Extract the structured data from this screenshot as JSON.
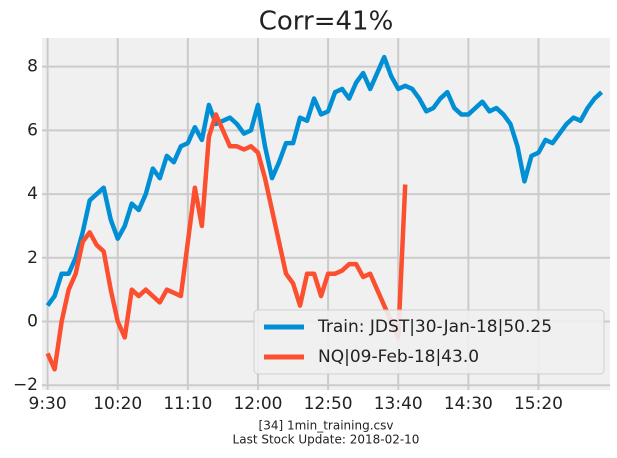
{
  "chart_data": {
    "type": "line",
    "title": "Corr=41%",
    "xlabel": [
      "[34] 1min_training.csv",
      "Last Stock Update: 2018-02-10"
    ],
    "x": [
      570,
      575,
      580,
      585,
      590,
      595,
      600,
      605,
      610,
      615,
      620,
      625,
      630,
      635,
      640,
      645,
      650,
      655,
      660,
      665,
      670,
      675,
      680,
      685,
      690,
      695,
      700,
      705,
      710,
      715,
      720,
      725,
      730,
      735,
      740,
      745,
      750,
      755,
      760,
      765,
      770,
      775,
      780,
      785,
      790,
      795,
      800,
      805,
      810,
      815,
      820,
      825,
      830,
      835,
      840,
      845,
      850,
      855,
      860,
      865,
      870,
      875,
      880,
      885,
      890,
      895,
      900,
      905,
      910,
      915,
      920,
      925,
      930,
      935,
      940,
      945,
      950,
      955,
      960,
      965
    ],
    "series": [
      {
        "name": "Train: JDST|30-Jan-18|50.25",
        "color": "#008fd5",
        "values": [
          0.5,
          0.8,
          1.5,
          1.5,
          2.0,
          2.8,
          3.8,
          4.0,
          4.2,
          3.2,
          2.6,
          3.0,
          3.7,
          3.5,
          4.0,
          4.8,
          4.5,
          5.2,
          5.0,
          5.5,
          5.6,
          6.1,
          5.7,
          6.8,
          6.2,
          6.3,
          6.4,
          6.2,
          5.9,
          6.0,
          6.8,
          5.5,
          4.5,
          5.0,
          5.6,
          5.6,
          6.4,
          6.3,
          7.0,
          6.5,
          6.6,
          7.2,
          7.3,
          7.0,
          7.5,
          7.8,
          7.3,
          7.8,
          8.3,
          7.7,
          7.3,
          7.4,
          7.3,
          7.0,
          6.6,
          6.7,
          7.0,
          7.2,
          6.7,
          6.5,
          6.5,
          6.7,
          6.9,
          6.6,
          6.7,
          6.5,
          6.2,
          5.5,
          4.4,
          5.2,
          5.3,
          5.7,
          5.6,
          5.9,
          6.2,
          6.4,
          6.3,
          6.7,
          7.0,
          7.2
        ]
      },
      {
        "name": "NQ|09-Feb-18|43.0",
        "color": "#fc4f30",
        "values": [
          -1.0,
          -1.5,
          0.0,
          1.0,
          1.5,
          2.5,
          2.8,
          2.4,
          2.2,
          1.0,
          0.0,
          -0.5,
          1.0,
          0.8,
          1.0,
          0.8,
          0.6,
          1.0,
          0.9,
          0.8,
          2.5,
          4.2,
          3.0,
          5.8,
          6.5,
          6.0,
          5.5,
          5.5,
          5.4,
          5.5,
          5.3,
          4.5,
          3.5,
          2.5,
          1.5,
          1.2,
          0.5,
          1.5,
          1.5,
          0.8,
          1.5,
          1.5,
          1.6,
          1.8,
          1.8,
          1.4,
          1.5,
          1.0,
          0.5,
          0.0,
          -0.5,
          4.3,
          null,
          null,
          null,
          null,
          null,
          null,
          null,
          null,
          null,
          null,
          null,
          null,
          null,
          null,
          null,
          null,
          null,
          null,
          null,
          null,
          null,
          null,
          null,
          null,
          null,
          null,
          null,
          null
        ]
      }
    ],
    "xlim": [
      566,
      971
    ],
    "ylim": [
      -2.15,
      8.9
    ],
    "xticks": [
      {
        "value": 570,
        "label": "9:30"
      },
      {
        "value": 620,
        "label": "10:20"
      },
      {
        "value": 670,
        "label": "11:10"
      },
      {
        "value": 720,
        "label": "12:00"
      },
      {
        "value": 770,
        "label": "12:50"
      },
      {
        "value": 820,
        "label": "13:40"
      },
      {
        "value": 870,
        "label": "14:30"
      },
      {
        "value": 920,
        "label": "15:20"
      }
    ],
    "yticks": [
      {
        "value": -2,
        "label": "−2"
      },
      0,
      2,
      4,
      6,
      8
    ],
    "grid": true,
    "legend": "lower right"
  }
}
